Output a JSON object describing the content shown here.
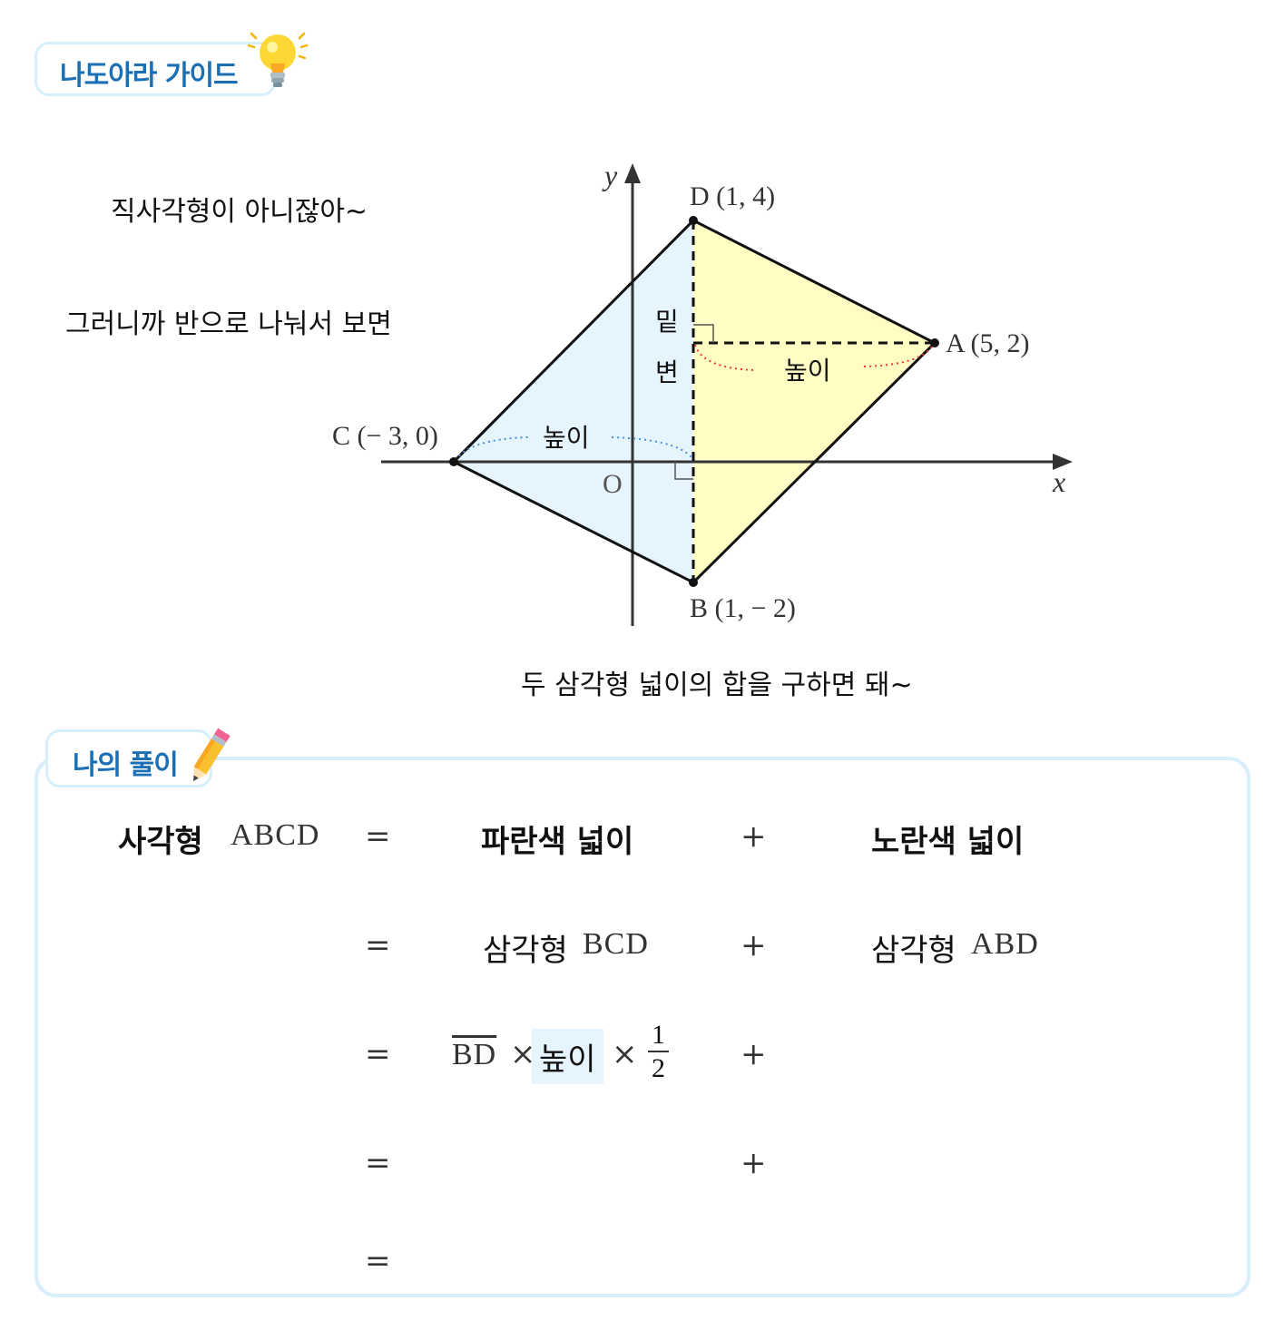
{
  "guide": {
    "title": "나도아라 가이드"
  },
  "notes": {
    "not_rectangle": "직사각형이  아니잖아~",
    "split": "그러니까  반으로  나눠서  보면",
    "sum": "두  삼각형  넓이의  합을  구하면  돼~"
  },
  "diagram": {
    "axis_x": "x",
    "axis_y": "y",
    "origin": "O",
    "points": {
      "A": "A (5,  2)",
      "B": "B (1,  − 2)",
      "C": "C (− 3, 0)",
      "D": "D (1, 4)"
    },
    "base_label_1": "밑",
    "base_label_2": "변",
    "height_label_left": "높이",
    "height_label_right": "높이",
    "colors": {
      "blue_fill": "#e6f4fd",
      "yellow_fill": "#fffdc4",
      "red_dots": "#e53935",
      "blue_dots": "#4a90d9"
    }
  },
  "solution": {
    "title": "나의 풀이",
    "row1": {
      "lhs_ko": "사각형",
      "lhs_en": "ABCD",
      "eq": "=",
      "blue": "파란색  넓이",
      "plus": "+",
      "yellow": "노란색  넓이"
    },
    "row2": {
      "eq": "=",
      "left_ko": "삼각형",
      "left_en": "BCD",
      "plus": "+",
      "right_ko": "삼각형",
      "right_en": "ABD"
    },
    "row3": {
      "eq": "=",
      "segment": "BD",
      "times1": "×",
      "height": "높이",
      "times2": "×",
      "num": "1",
      "den": "2",
      "plus": "+"
    },
    "row4": {
      "eq": "=",
      "plus": "+"
    },
    "row5": {
      "eq": "="
    }
  }
}
